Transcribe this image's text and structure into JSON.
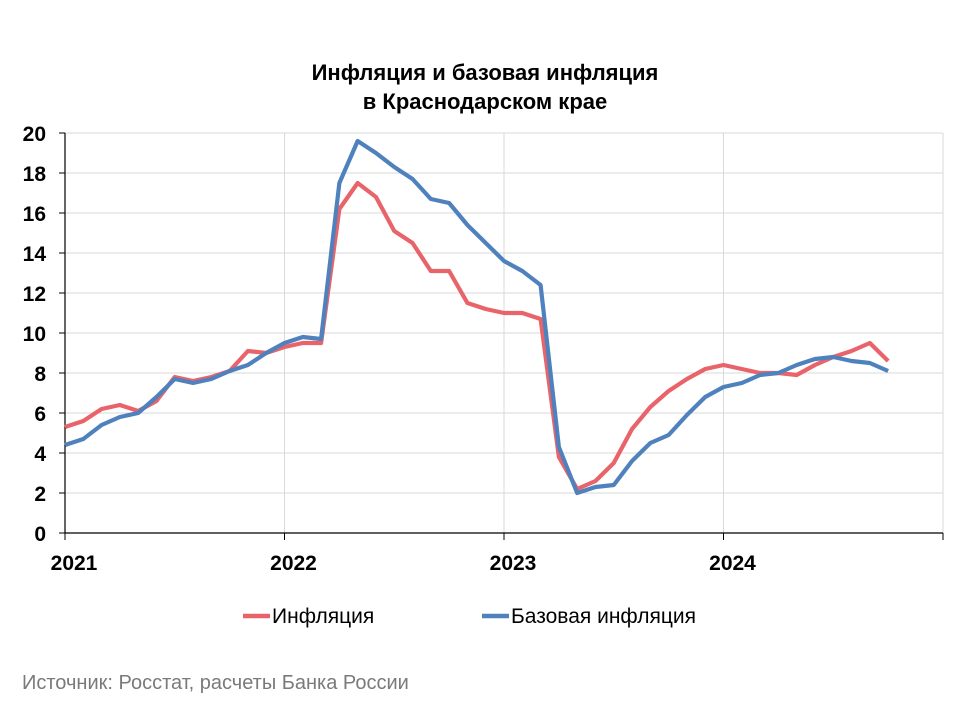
{
  "chart_data": {
    "type": "line",
    "title": [
      "Инфляция и базовая инфляция",
      "в Краснодарском крае"
    ],
    "source": "Источник: Росстат, расчеты Банка России",
    "ylim": [
      0,
      20
    ],
    "yticks": [
      "0",
      "2",
      "4",
      "6",
      "8",
      "10",
      "12",
      "14",
      "16",
      "18",
      "20"
    ],
    "xlim": [
      "2021-01",
      "2025-01"
    ],
    "xticks": [
      "2021",
      "2022",
      "2023",
      "2024"
    ],
    "grid": true,
    "legend_position": "bottom",
    "colors": {
      "inflation": "#e8646a",
      "core": "#4f81bd"
    },
    "series": [
      {
        "name": "Инфляция",
        "values": [
          5.3,
          5.6,
          6.2,
          6.4,
          6.1,
          6.6,
          7.8,
          7.6,
          7.8,
          8.1,
          9.1,
          9.0,
          9.3,
          9.5,
          9.5,
          16.2,
          17.5,
          16.8,
          15.1,
          14.5,
          13.1,
          13.1,
          11.5,
          11.2,
          11.0,
          11.0,
          10.7,
          3.8,
          2.2,
          2.6,
          3.5,
          5.2,
          6.3,
          7.1,
          7.7,
          8.2,
          8.4,
          8.2,
          8.0,
          8.0,
          7.9,
          8.4,
          8.8,
          9.1,
          9.5,
          8.6
        ]
      },
      {
        "name": "Базовая инфляция",
        "values": [
          4.4,
          4.7,
          5.4,
          5.8,
          6.0,
          6.8,
          7.7,
          7.5,
          7.7,
          8.1,
          8.4,
          9.0,
          9.5,
          9.8,
          9.7,
          17.5,
          19.6,
          19.0,
          18.3,
          17.7,
          16.7,
          16.5,
          15.4,
          14.5,
          13.6,
          13.1,
          12.4,
          4.3,
          2.0,
          2.3,
          2.4,
          3.6,
          4.5,
          4.9,
          5.9,
          6.8,
          7.3,
          7.5,
          7.9,
          8.0,
          8.4,
          8.7,
          8.8,
          8.6,
          8.5,
          8.1
        ]
      }
    ]
  }
}
